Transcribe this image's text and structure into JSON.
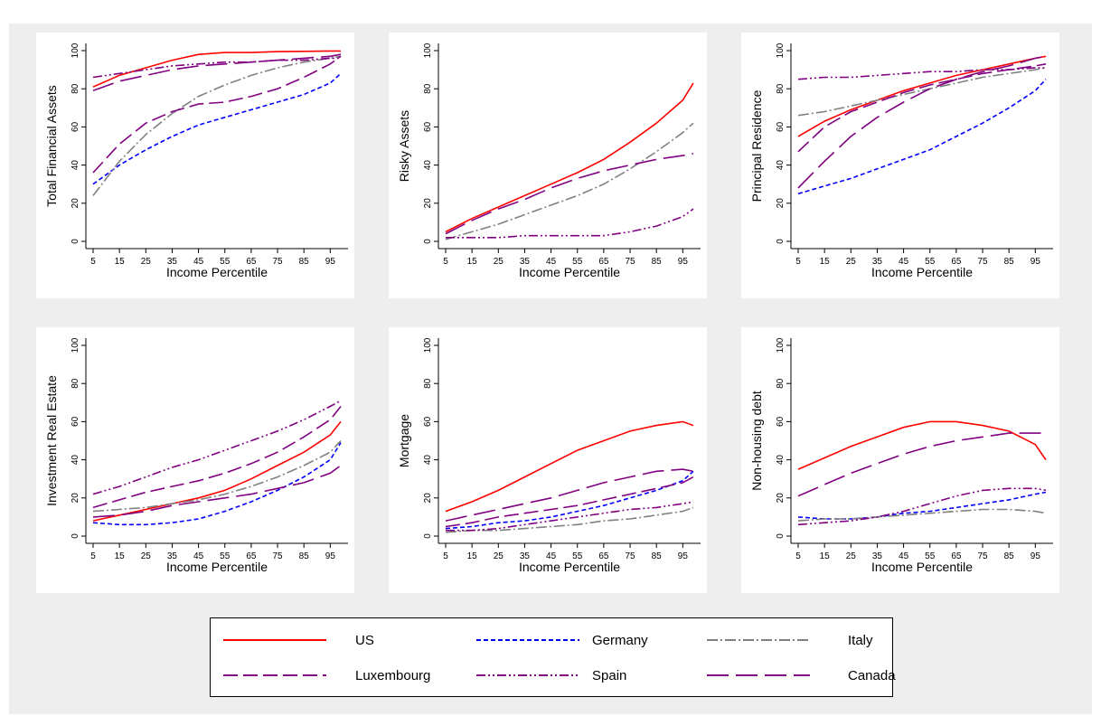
{
  "chart_data": [
    {
      "type": "line",
      "ylabel": "Total Financial Assets",
      "xlabel": "Income Percentile",
      "ylim": [
        0,
        100
      ],
      "series": [
        {
          "name": "US",
          "x": [
            5,
            15,
            25,
            35,
            45,
            55,
            65,
            75,
            85,
            95,
            99
          ],
          "values": [
            81,
            87,
            91,
            95,
            98,
            99,
            99,
            99.5,
            99.6,
            99.8,
            99.8
          ]
        },
        {
          "name": "Germany",
          "x": [
            5,
            15,
            25,
            35,
            45,
            55,
            65,
            75,
            85,
            95,
            99
          ],
          "values": [
            30,
            40,
            48,
            55,
            61,
            65,
            69,
            73,
            77,
            83,
            88
          ]
        },
        {
          "name": "Italy",
          "x": [
            5,
            15,
            25,
            35,
            45,
            55,
            65,
            75,
            85,
            95,
            99
          ],
          "values": [
            24,
            42,
            56,
            67,
            76,
            82,
            87,
            91,
            94,
            96,
            97
          ]
        },
        {
          "name": "Luxembourg",
          "x": [
            5,
            15,
            25,
            35,
            45,
            55,
            65,
            75,
            85,
            95,
            99
          ],
          "values": [
            36,
            51,
            62,
            68,
            72,
            73,
            76,
            80,
            86,
            93,
            97
          ]
        },
        {
          "name": "Spain",
          "x": [
            5,
            15,
            25,
            35,
            45,
            55,
            65,
            75,
            85,
            95,
            99
          ],
          "values": [
            86,
            88,
            90,
            92,
            93,
            94,
            94,
            95,
            95,
            96,
            96
          ]
        },
        {
          "name": "Canada",
          "x": [
            5,
            15,
            25,
            35,
            45,
            55,
            65,
            75,
            85,
            95,
            99
          ],
          "values": [
            79,
            84,
            87,
            90,
            92,
            93,
            94,
            95,
            96,
            97,
            98
          ]
        }
      ]
    },
    {
      "type": "line",
      "ylabel": "Risky Assets",
      "xlabel": "Income Percentile",
      "ylim": [
        0,
        100
      ],
      "series": [
        {
          "name": "US",
          "x": [
            5,
            15,
            25,
            35,
            45,
            55,
            65,
            75,
            85,
            95,
            99
          ],
          "values": [
            5,
            12,
            18,
            24,
            30,
            36,
            43,
            52,
            62,
            74,
            83
          ]
        },
        {
          "name": "Germany",
          "x": [
            5,
            15,
            25,
            35,
            45,
            55,
            65,
            75,
            85,
            95,
            99
          ],
          "values": [
            null,
            null,
            null,
            null,
            null,
            null,
            null,
            null,
            null,
            null,
            null
          ]
        },
        {
          "name": "Italy",
          "x": [
            5,
            15,
            25,
            35,
            45,
            55,
            65,
            75,
            85,
            95,
            99
          ],
          "values": [
            1,
            5,
            9,
            14,
            19,
            24,
            30,
            38,
            47,
            57,
            62
          ]
        },
        {
          "name": "Luxembourg",
          "x": [
            5,
            15,
            25,
            35,
            45,
            55,
            65,
            75,
            85,
            95,
            99
          ],
          "values": [
            null,
            null,
            null,
            null,
            null,
            null,
            null,
            null,
            null,
            null,
            null
          ]
        },
        {
          "name": "Spain",
          "x": [
            5,
            15,
            25,
            35,
            45,
            55,
            65,
            75,
            85,
            95,
            99
          ],
          "values": [
            2,
            2,
            2,
            3,
            3,
            3,
            3,
            5,
            8,
            13,
            17
          ]
        },
        {
          "name": "Canada",
          "x": [
            5,
            15,
            25,
            35,
            45,
            55,
            65,
            75,
            85,
            95,
            99
          ],
          "values": [
            4,
            11,
            17,
            22,
            28,
            33,
            37,
            40,
            43,
            45,
            46
          ]
        }
      ]
    },
    {
      "type": "line",
      "ylabel": "Principal Residence",
      "xlabel": "Income Percentile",
      "ylim": [
        0,
        100
      ],
      "series": [
        {
          "name": "US",
          "x": [
            5,
            15,
            25,
            35,
            45,
            55,
            65,
            75,
            85,
            95,
            99
          ],
          "values": [
            55,
            63,
            69,
            74,
            79,
            83,
            87,
            90,
            93,
            96,
            97
          ]
        },
        {
          "name": "Germany",
          "x": [
            5,
            15,
            25,
            35,
            45,
            55,
            65,
            75,
            85,
            95,
            99
          ],
          "values": [
            25,
            29,
            33,
            38,
            43,
            48,
            55,
            62,
            70,
            79,
            85
          ]
        },
        {
          "name": "Italy",
          "x": [
            5,
            15,
            25,
            35,
            45,
            55,
            65,
            75,
            85,
            95,
            99
          ],
          "values": [
            66,
            68,
            71,
            74,
            77,
            80,
            83,
            86,
            88,
            90,
            91
          ]
        },
        {
          "name": "Luxembourg",
          "x": [
            5,
            15,
            25,
            35,
            45,
            55,
            65,
            75,
            85,
            95,
            99
          ],
          "values": [
            47,
            60,
            68,
            73,
            78,
            82,
            85,
            88,
            90,
            92,
            93
          ]
        },
        {
          "name": "Spain",
          "x": [
            5,
            15,
            25,
            35,
            45,
            55,
            65,
            75,
            85,
            95,
            99
          ],
          "values": [
            85,
            86,
            86,
            87,
            88,
            89,
            89,
            90,
            90,
            91,
            91
          ]
        },
        {
          "name": "Canada",
          "x": [
            5,
            15,
            25,
            35,
            45,
            55,
            65,
            75,
            85,
            95,
            99
          ],
          "values": [
            28,
            42,
            55,
            65,
            73,
            80,
            85,
            89,
            92,
            96,
            97
          ]
        }
      ]
    },
    {
      "type": "line",
      "ylabel": "Investment Real Estate",
      "xlabel": "Income Percentile",
      "ylim": [
        0,
        100
      ],
      "series": [
        {
          "name": "US",
          "x": [
            5,
            15,
            25,
            35,
            45,
            55,
            65,
            75,
            85,
            95,
            99
          ],
          "values": [
            8,
            11,
            14,
            17,
            20,
            24,
            30,
            37,
            44,
            53,
            60
          ]
        },
        {
          "name": "Germany",
          "x": [
            5,
            15,
            25,
            35,
            45,
            55,
            65,
            75,
            85,
            95,
            99
          ],
          "values": [
            7,
            6,
            6,
            7,
            9,
            13,
            18,
            24,
            31,
            40,
            49
          ]
        },
        {
          "name": "Italy",
          "x": [
            5,
            15,
            25,
            35,
            45,
            55,
            65,
            75,
            85,
            95,
            99
          ],
          "values": [
            13,
            14,
            15,
            17,
            19,
            22,
            26,
            31,
            37,
            44,
            50
          ]
        },
        {
          "name": "Luxembourg",
          "x": [
            5,
            15,
            25,
            35,
            45,
            55,
            65,
            75,
            85,
            95,
            99
          ],
          "values": [
            15,
            19,
            23,
            26,
            29,
            33,
            38,
            44,
            52,
            61,
            68
          ]
        },
        {
          "name": "Spain",
          "x": [
            5,
            15,
            25,
            35,
            45,
            55,
            65,
            75,
            85,
            95,
            99
          ],
          "values": [
            22,
            26,
            31,
            36,
            40,
            45,
            50,
            55,
            61,
            68,
            71
          ]
        },
        {
          "name": "Canada",
          "x": [
            5,
            15,
            25,
            35,
            45,
            55,
            65,
            75,
            85,
            95,
            99
          ],
          "values": [
            10,
            11,
            13,
            16,
            18,
            20,
            22,
            25,
            28,
            33,
            37
          ]
        }
      ]
    },
    {
      "type": "line",
      "ylabel": "Mortgage",
      "xlabel": "Income Percentile",
      "ylim": [
        0,
        100
      ],
      "series": [
        {
          "name": "US",
          "x": [
            5,
            15,
            25,
            35,
            45,
            55,
            65,
            75,
            85,
            95,
            99
          ],
          "values": [
            13,
            18,
            24,
            31,
            38,
            45,
            50,
            55,
            58,
            60,
            58
          ]
        },
        {
          "name": "Germany",
          "x": [
            5,
            15,
            25,
            35,
            45,
            55,
            65,
            75,
            85,
            95,
            99
          ],
          "values": [
            4,
            5,
            7,
            8,
            10,
            13,
            16,
            20,
            24,
            29,
            34
          ]
        },
        {
          "name": "Italy",
          "x": [
            5,
            15,
            25,
            35,
            45,
            55,
            65,
            75,
            85,
            95,
            99
          ],
          "values": [
            2,
            3,
            3,
            4,
            5,
            6,
            8,
            9,
            11,
            13,
            15
          ]
        },
        {
          "name": "Luxembourg",
          "x": [
            5,
            15,
            25,
            35,
            45,
            55,
            65,
            75,
            85,
            95,
            99
          ],
          "values": [
            5,
            7,
            10,
            12,
            14,
            16,
            19,
            22,
            25,
            28,
            31
          ]
        },
        {
          "name": "Spain",
          "x": [
            5,
            15,
            25,
            35,
            45,
            55,
            65,
            75,
            85,
            95,
            99
          ],
          "values": [
            3,
            3,
            4,
            6,
            8,
            10,
            12,
            14,
            15,
            17,
            18
          ]
        },
        {
          "name": "Canada",
          "x": [
            5,
            15,
            25,
            35,
            45,
            55,
            65,
            75,
            85,
            95,
            99
          ],
          "values": [
            8,
            11,
            14,
            17,
            20,
            24,
            28,
            31,
            34,
            35,
            34
          ]
        }
      ]
    },
    {
      "type": "line",
      "ylabel": "Non-housing debt",
      "xlabel": "Income Percentile",
      "ylim": [
        0,
        100
      ],
      "series": [
        {
          "name": "US",
          "x": [
            5,
            15,
            25,
            35,
            45,
            55,
            65,
            75,
            85,
            95,
            99
          ],
          "values": [
            35,
            41,
            47,
            52,
            57,
            60,
            60,
            58,
            55,
            48,
            40
          ]
        },
        {
          "name": "Germany",
          "x": [
            5,
            15,
            25,
            35,
            45,
            55,
            65,
            75,
            85,
            95,
            99
          ],
          "values": [
            10,
            9,
            9,
            10,
            12,
            13,
            15,
            17,
            19,
            22,
            23
          ]
        },
        {
          "name": "Italy",
          "x": [
            5,
            15,
            25,
            35,
            45,
            55,
            65,
            75,
            85,
            95,
            99
          ],
          "values": [
            8,
            9,
            9,
            10,
            11,
            12,
            13,
            14,
            14,
            13,
            12
          ]
        },
        {
          "name": "Luxembourg",
          "x": [
            5,
            15,
            25,
            35,
            45,
            55,
            65,
            75,
            85,
            95,
            99
          ],
          "values": [
            null,
            null,
            null,
            null,
            null,
            null,
            null,
            null,
            null,
            null,
            null
          ]
        },
        {
          "name": "Spain",
          "x": [
            5,
            15,
            25,
            35,
            45,
            55,
            65,
            75,
            85,
            95,
            99
          ],
          "values": [
            6,
            7,
            8,
            10,
            13,
            17,
            21,
            24,
            25,
            25,
            24
          ]
        },
        {
          "name": "Canada",
          "x": [
            5,
            15,
            25,
            35,
            45,
            55,
            65,
            75,
            85,
            95,
            99
          ],
          "values": [
            21,
            27,
            33,
            38,
            43,
            47,
            50,
            52,
            54,
            54,
            54
          ]
        }
      ]
    }
  ],
  "axes": {
    "xticks": [
      "5",
      "15",
      "25",
      "35",
      "45",
      "55",
      "65",
      "75",
      "85",
      "95"
    ],
    "yticks": [
      "0",
      "20",
      "40",
      "60",
      "80",
      "100"
    ]
  },
  "series_styles": [
    {
      "name": "US",
      "color": "#ff0000",
      "dash": "solid"
    },
    {
      "name": "Germany",
      "color": "#0000ff",
      "dash": "short-dash"
    },
    {
      "name": "Italy",
      "color": "#808080",
      "dash": "dash-dot"
    },
    {
      "name": "Luxembourg",
      "color": "#800080",
      "dash": "long-dash"
    },
    {
      "name": "Spain",
      "color": "#800080",
      "dash": "dash-dot-dot"
    },
    {
      "name": "Canada",
      "color": "#800080",
      "dash": "long-dash-gap"
    }
  ],
  "legend": {
    "placement": "bottom",
    "items": [
      {
        "label": "US"
      },
      {
        "label": "Germany"
      },
      {
        "label": "Italy"
      },
      {
        "label": "Luxembourg"
      },
      {
        "label": "Spain"
      },
      {
        "label": "Canada"
      }
    ]
  }
}
